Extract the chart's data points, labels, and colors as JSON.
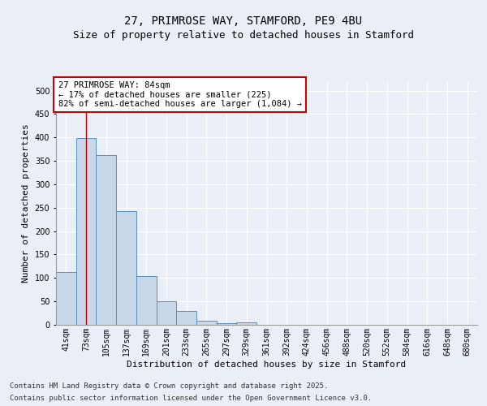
{
  "title_line1": "27, PRIMROSE WAY, STAMFORD, PE9 4BU",
  "title_line2": "Size of property relative to detached houses in Stamford",
  "xlabel": "Distribution of detached houses by size in Stamford",
  "ylabel": "Number of detached properties",
  "categories": [
    "41sqm",
    "73sqm",
    "105sqm",
    "137sqm",
    "169sqm",
    "201sqm",
    "233sqm",
    "265sqm",
    "297sqm",
    "329sqm",
    "361sqm",
    "392sqm",
    "424sqm",
    "456sqm",
    "488sqm",
    "520sqm",
    "552sqm",
    "584sqm",
    "616sqm",
    "648sqm",
    "680sqm"
  ],
  "values": [
    113,
    398,
    363,
    243,
    104,
    50,
    30,
    9,
    4,
    6,
    0,
    0,
    0,
    0,
    0,
    0,
    0,
    0,
    0,
    0,
    0
  ],
  "bar_color": "#c8d8e8",
  "bar_edge_color": "#5590c0",
  "vline_x_index": 1,
  "vline_color": "#cc0000",
  "annotation_text": "27 PRIMROSE WAY: 84sqm\n← 17% of detached houses are smaller (225)\n82% of semi-detached houses are larger (1,084) →",
  "annotation_box_color": "#ffffff",
  "annotation_box_edge": "#cc0000",
  "ylim": [
    0,
    520
  ],
  "yticks": [
    0,
    50,
    100,
    150,
    200,
    250,
    300,
    350,
    400,
    450,
    500
  ],
  "bg_color": "#eaeff7",
  "plot_bg_color": "#eaeff7",
  "footer_line1": "Contains HM Land Registry data © Crown copyright and database right 2025.",
  "footer_line2": "Contains public sector information licensed under the Open Government Licence v3.0.",
  "title_fontsize": 10,
  "subtitle_fontsize": 9,
  "axis_label_fontsize": 8,
  "tick_fontsize": 7,
  "annotation_fontsize": 7.5,
  "footer_fontsize": 6.5
}
